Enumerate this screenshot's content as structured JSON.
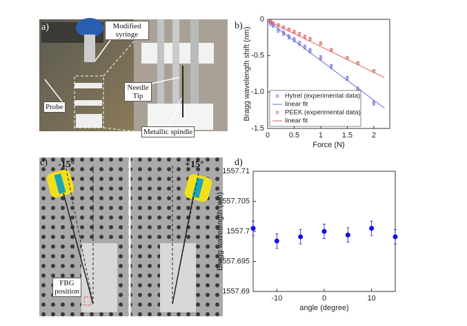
{
  "panels": {
    "a": "a)",
    "b": "b)",
    "c": "c)",
    "d": "d)"
  },
  "photo_a": {
    "syringe": "Modified syringe",
    "probe": "Probe",
    "needle": "Needle Tip",
    "spindle": "Metallic spindle"
  },
  "photo_c": {
    "left_angle": "-15°",
    "right_angle": "+15°",
    "fbg": "FBG position"
  },
  "chart_data": [
    {
      "type": "scatter",
      "xlabel": "Force (N)",
      "ylabel": "Bragg wavelength shift (nm)",
      "xlim": [
        0,
        2.3
      ],
      "xticks": [
        0,
        0.5,
        1,
        1.5,
        2
      ],
      "ylim": [
        -1.5,
        0
      ],
      "yticks": [
        0,
        -0.5,
        {
          "value": -1,
          "label": "-1.0"
        },
        -1.5
      ],
      "legend": "lower left",
      "series": [
        {
          "name": "Hytrel (experimental data)",
          "color": "#6b6bdc",
          "style": "markers",
          "x": [
            0.05,
            0.1,
            0.2,
            0.3,
            0.4,
            0.5,
            0.6,
            0.7,
            0.8,
            1,
            1.2,
            1.5,
            1.7,
            2
          ],
          "values": [
            -0.05,
            -0.08,
            -0.15,
            -0.19,
            -0.24,
            -0.28,
            -0.33,
            -0.38,
            -0.43,
            -0.53,
            -0.65,
            -0.81,
            -0.96,
            -1.15
          ],
          "errors": [
            0.03,
            0.03,
            0.03,
            0.03,
            0.03,
            0.03,
            0.03,
            0.03,
            0.03,
            0.03,
            0.03,
            0.03,
            0.03,
            0.03
          ]
        },
        {
          "name": "linear fit",
          "color": "#6b6bdc",
          "style": "line",
          "x": [
            0,
            2.2
          ],
          "values": [
            -0.02,
            -1.22
          ]
        },
        {
          "name": "PEEK (experimental data)",
          "color": "#e06060",
          "style": "markers",
          "x": [
            0.05,
            0.1,
            0.2,
            0.3,
            0.4,
            0.5,
            0.6,
            0.7,
            0.8,
            1,
            1.2,
            1.5,
            1.7,
            2
          ],
          "values": [
            -0.03,
            -0.05,
            -0.08,
            -0.11,
            -0.14,
            -0.17,
            -0.2,
            -0.24,
            -0.27,
            -0.33,
            -0.42,
            -0.53,
            -0.6,
            -0.71
          ],
          "errors": [
            0.02,
            0.02,
            0.02,
            0.02,
            0.02,
            0.02,
            0.02,
            0.02,
            0.02,
            0.02,
            0.02,
            0.02,
            0.02,
            0.02
          ]
        },
        {
          "name": "linear fit",
          "color": "#e06060",
          "style": "line",
          "x": [
            0,
            2.2
          ],
          "values": [
            -0.02,
            -0.8
          ]
        }
      ]
    },
    {
      "type": "scatter",
      "xlabel": "angle (degree)",
      "ylabel": "Bragg wavelength (nm)",
      "xlim": [
        -15,
        15
      ],
      "xticks": [
        -10,
        0,
        10
      ],
      "ylim": [
        1557.69,
        1557.71
      ],
      "yticks": [
        1557.69,
        1557.695,
        1557.7,
        1557.705,
        1557.71
      ],
      "series": [
        {
          "color": "#1010e0",
          "style": "dots",
          "x": [
            -15,
            -10,
            -5,
            0,
            5,
            10,
            15
          ],
          "values": [
            1557.7005,
            1557.6984,
            1557.6991,
            1557.7,
            1557.6994,
            1557.7005,
            1557.6991
          ],
          "errors": [
            0.0012,
            0.0012,
            0.0012,
            0.0012,
            0.0012,
            0.0012,
            0.0012
          ]
        }
      ]
    }
  ]
}
